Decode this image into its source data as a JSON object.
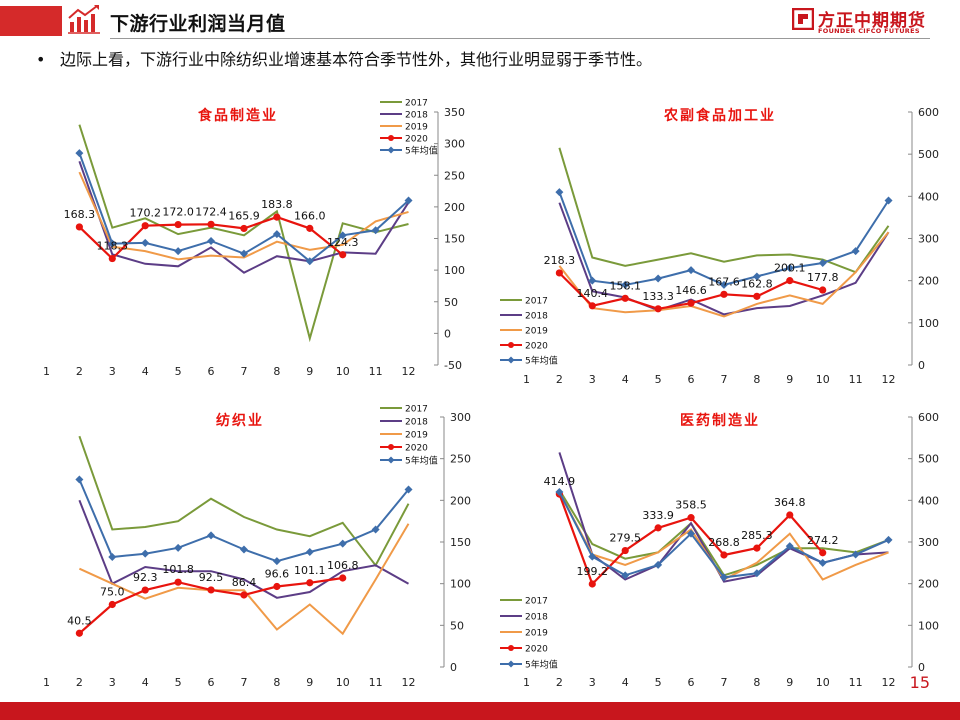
{
  "header": {
    "title": "下游行业利润当月值",
    "brand_cn": "方正中期期货",
    "brand_en": "FOUNDER CIFCO FUTURES",
    "accent": "#d52a2a"
  },
  "bullet": "边际上看，下游行业中除纺织业增速基本符合季节性外，其他行业明显弱于季节性。",
  "page_number": "15",
  "series_styles": {
    "2017": {
      "color": "#7a9a3a",
      "marker": "none"
    },
    "2018": {
      "color": "#5c3d86",
      "marker": "none"
    },
    "2019": {
      "color": "#f09a48",
      "marker": "none"
    },
    "2020": {
      "color": "#e8140e",
      "marker": "circle"
    },
    "5年均值": {
      "color": "#3e6eab",
      "marker": "diamond"
    }
  },
  "chart_data": [
    {
      "type": "line",
      "title": "食品制造业",
      "categories": [
        "1",
        "2",
        "3",
        "4",
        "5",
        "6",
        "7",
        "8",
        "9",
        "10",
        "11",
        "12"
      ],
      "ylim": [
        -50,
        350
      ],
      "yticks": [
        -50,
        0,
        50,
        100,
        150,
        200,
        250,
        300,
        350
      ],
      "legend": "top-right",
      "series": [
        {
          "name": "2017",
          "values": [
            null,
            330,
            167,
            182,
            157,
            167,
            155,
            193,
            -8,
            174,
            160,
            173
          ]
        },
        {
          "name": "2018",
          "values": [
            null,
            272,
            125,
            110,
            106,
            136,
            96,
            122,
            114,
            128,
            126,
            207
          ]
        },
        {
          "name": "2019",
          "values": [
            null,
            255,
            137,
            130,
            117,
            123,
            120,
            145,
            132,
            140,
            177,
            192
          ]
        },
        {
          "name": "2020",
          "values": [
            null,
            168.3,
            118.3,
            170.2,
            172.0,
            172.4,
            165.9,
            183.8,
            166.0,
            124.3,
            null,
            null
          ]
        },
        {
          "name": "5年均值",
          "values": [
            null,
            285,
            142,
            143,
            130,
            146,
            126,
            157,
            114,
            155,
            163,
            210
          ]
        }
      ],
      "data_labels": [
        "",
        "168.3",
        "118.3",
        "170.2",
        "172.0",
        "172.4",
        "165.9",
        "183.8",
        "166.0",
        "124.3",
        "",
        ""
      ]
    },
    {
      "type": "line",
      "title": "农副食品加工业",
      "categories": [
        "1",
        "2",
        "3",
        "4",
        "5",
        "6",
        "7",
        "8",
        "9",
        "10",
        "11",
        "12"
      ],
      "ylim": [
        0,
        600
      ],
      "yticks": [
        0,
        100,
        200,
        300,
        400,
        500,
        600
      ],
      "legend": "bottom-left",
      "series": [
        {
          "name": "2017",
          "values": [
            null,
            515,
            255,
            235,
            250,
            265,
            245,
            260,
            262,
            250,
            220,
            330
          ]
        },
        {
          "name": "2018",
          "values": [
            null,
            385,
            175,
            160,
            130,
            155,
            120,
            135,
            140,
            165,
            195,
            315
          ]
        },
        {
          "name": "2019",
          "values": [
            null,
            235,
            135,
            125,
            130,
            140,
            115,
            145,
            165,
            145,
            220,
            315
          ]
        },
        {
          "name": "2020",
          "values": [
            null,
            218.3,
            140.4,
            158.1,
            133.3,
            146.6,
            167.6,
            162.8,
            200.1,
            177.8,
            null,
            null
          ]
        },
        {
          "name": "5年均值",
          "values": [
            null,
            410,
            200,
            190,
            205,
            225,
            190,
            210,
            230,
            242,
            270,
            390
          ]
        }
      ],
      "data_labels": [
        "",
        "218.3",
        "140.4",
        "158.1",
        "133.3",
        "146.6",
        "167.6",
        "162.8",
        "200.1",
        "177.8",
        "",
        ""
      ]
    },
    {
      "type": "line",
      "title": "纺织业",
      "categories": [
        "1",
        "2",
        "3",
        "4",
        "5",
        "6",
        "7",
        "8",
        "9",
        "10",
        "11",
        "12"
      ],
      "ylim": [
        0,
        300
      ],
      "yticks": [
        0,
        50,
        100,
        150,
        200,
        250,
        300
      ],
      "legend": "top-right",
      "series": [
        {
          "name": "2017",
          "values": [
            null,
            277,
            165,
            168,
            175,
            202,
            180,
            165,
            157,
            173,
            122,
            196
          ]
        },
        {
          "name": "2018",
          "values": [
            null,
            200,
            100,
            120,
            115,
            115,
            105,
            83,
            90,
            115,
            122,
            100
          ]
        },
        {
          "name": "2019",
          "values": [
            null,
            118,
            100,
            82,
            95,
            92,
            92,
            45,
            75,
            40,
            105,
            172
          ]
        },
        {
          "name": "2020",
          "values": [
            null,
            40.5,
            75.0,
            92.3,
            101.8,
            92.5,
            86.4,
            96.6,
            101.1,
            106.8,
            null,
            null
          ]
        },
        {
          "name": "5年均值",
          "values": [
            null,
            225,
            132,
            136,
            143,
            158,
            141,
            127,
            138,
            148,
            165,
            213
          ]
        }
      ],
      "data_labels": [
        "",
        "40.5",
        "75.0",
        "92.3",
        "101.8",
        "92.5",
        "86.4",
        "96.6",
        "101.1",
        "106.8",
        "",
        ""
      ]
    },
    {
      "type": "line",
      "title": "医药制造业",
      "categories": [
        "1",
        "2",
        "3",
        "4",
        "5",
        "6",
        "7",
        "8",
        "9",
        "10",
        "11",
        "12"
      ],
      "ylim": [
        0,
        600
      ],
      "yticks": [
        0,
        100,
        200,
        300,
        400,
        500,
        600
      ],
      "legend": "bottom-left",
      "series": [
        {
          "name": "2017",
          "values": [
            null,
            425,
            295,
            260,
            275,
            345,
            220,
            245,
            285,
            285,
            275,
            305
          ]
        },
        {
          "name": "2018",
          "values": [
            null,
            515,
            270,
            210,
            245,
            345,
            205,
            220,
            285,
            250,
            270,
            275
          ]
        },
        {
          "name": "2019",
          "values": [
            null,
            420,
            270,
            245,
            275,
            330,
            210,
            250,
            320,
            210,
            245,
            275
          ]
        },
        {
          "name": "2020",
          "values": [
            null,
            414.9,
            199.2,
            279.5,
            333.9,
            358.5,
            268.8,
            285.3,
            364.8,
            274.2,
            null,
            null
          ]
        },
        {
          "name": "5年均值",
          "values": [
            null,
            420,
            265,
            220,
            245,
            320,
            215,
            225,
            290,
            250,
            270,
            305
          ]
        }
      ],
      "data_labels": [
        "",
        "414.9",
        "199.2",
        "279.5",
        "333.9",
        "358.5",
        "268.8",
        "285.3",
        "364.8",
        "274.2",
        "",
        ""
      ]
    }
  ]
}
